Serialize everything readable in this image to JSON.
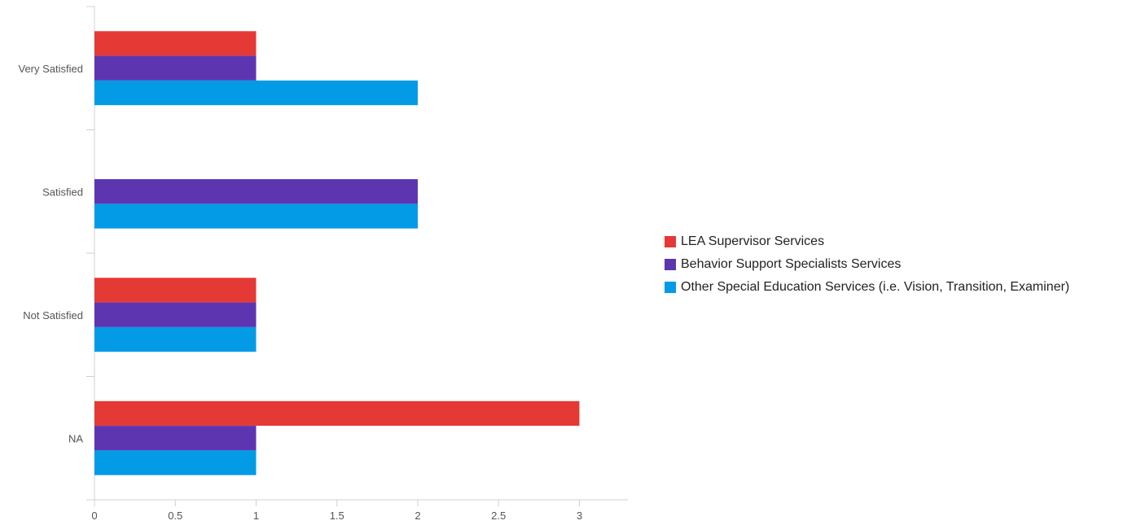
{
  "chart_data": {
    "type": "bar",
    "orientation": "horizontal",
    "categories": [
      "Very Satisfied",
      "Satisfied",
      "Not Satisfied",
      "NA"
    ],
    "series": [
      {
        "name": "LEA Supervisor Services",
        "color": "#e53935",
        "values": [
          1,
          0,
          1,
          3
        ]
      },
      {
        "name": "Behavior Support Specialists Services",
        "color": "#5e35b1",
        "values": [
          1,
          2,
          1,
          1
        ]
      },
      {
        "name": "Other Special Education Services (i.e. Vision, Transition, Examiner)",
        "color": "#039be5",
        "values": [
          2,
          2,
          1,
          1
        ]
      }
    ],
    "xlim": [
      0,
      3.3
    ],
    "xticks": [
      0,
      0.5,
      1,
      1.5,
      2,
      2.5,
      3
    ],
    "xtick_labels": [
      "0",
      "0.5",
      "1",
      "1.5",
      "2",
      "2.5",
      "3"
    ],
    "grid": false,
    "legend_position": "right"
  }
}
